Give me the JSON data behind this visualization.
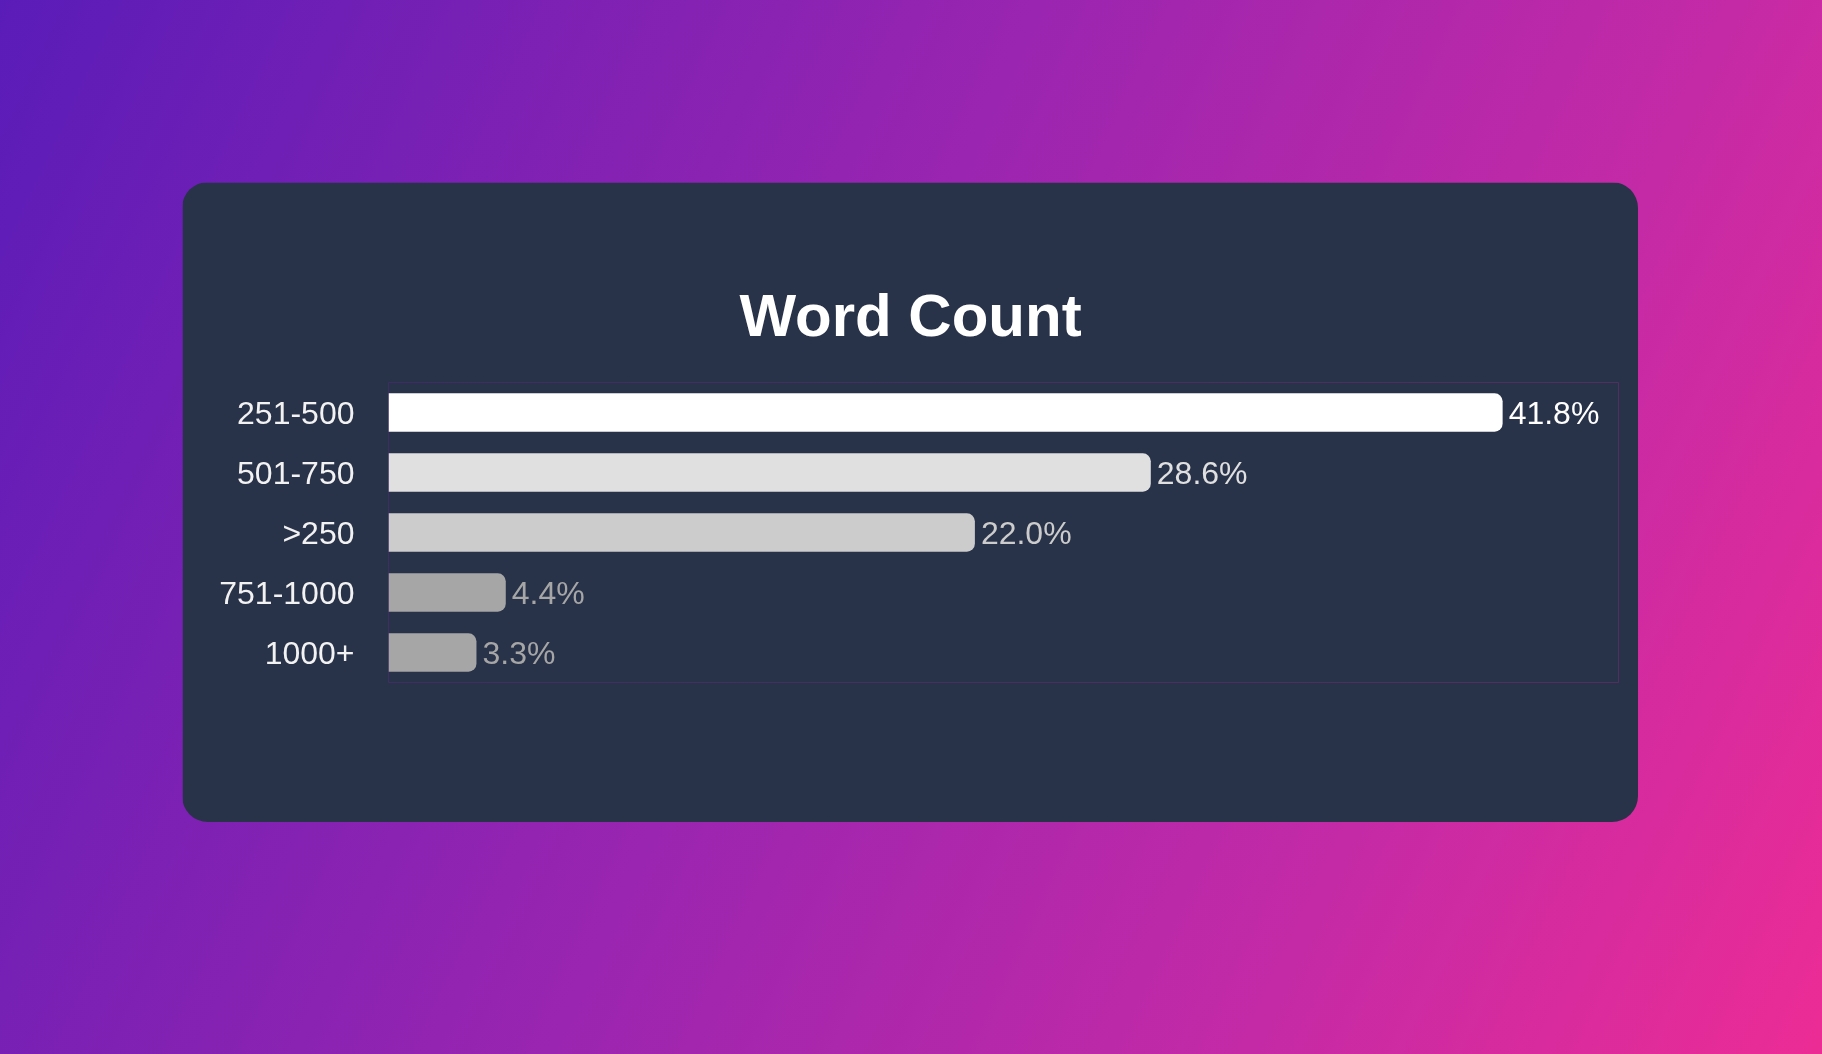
{
  "chart_data": {
    "type": "bar",
    "orientation": "horizontal",
    "title": "Word Count",
    "categories": [
      "251-500",
      "501-750",
      ">250",
      "751-1000",
      "1000+"
    ],
    "values": [
      41.8,
      28.6,
      22.0,
      4.4,
      3.3
    ],
    "value_labels": [
      "41.8%",
      "28.6%",
      "22.0%",
      "4.4%",
      "3.3%"
    ],
    "colors": [
      "#ffffff",
      "#e0e0e0",
      "#cccccc",
      "#a6a6a6",
      "#a6a6a6"
    ],
    "tick_labels": "y"
  }
}
